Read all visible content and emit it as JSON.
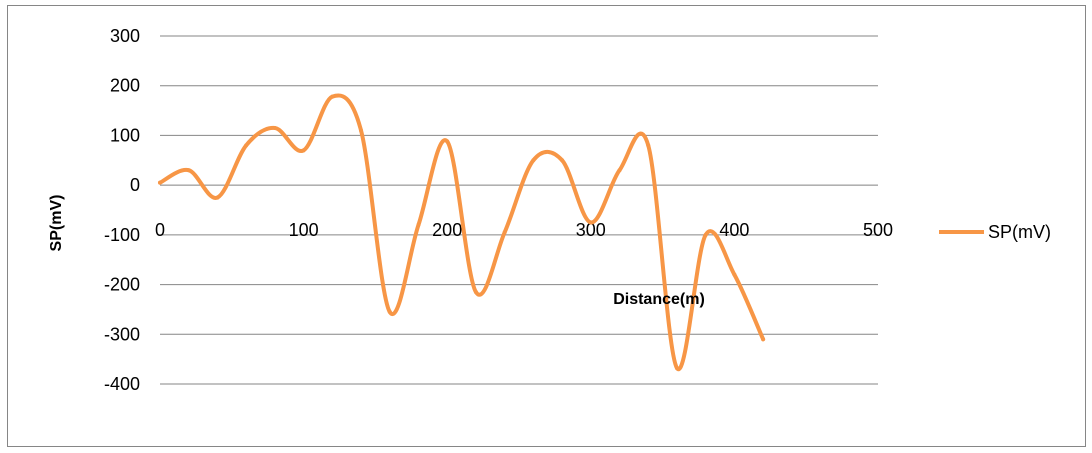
{
  "chart_data": {
    "type": "line",
    "title": "",
    "xlabel": "Distance(m)",
    "ylabel": "SP(mV)",
    "xlim": [
      0,
      500
    ],
    "ylim": [
      -400,
      300
    ],
    "x_ticks": [
      0,
      100,
      200,
      300,
      400,
      500
    ],
    "y_ticks": [
      300,
      200,
      100,
      0,
      -100,
      -200,
      -300,
      -400
    ],
    "grid": "horizontal",
    "legend": "right",
    "series": [
      {
        "name": "SP(mV)",
        "color": "#F79646",
        "x": [
          0,
          20,
          40,
          60,
          80,
          100,
          120,
          140,
          160,
          180,
          200,
          220,
          240,
          260,
          280,
          300,
          320,
          340,
          360,
          380,
          400,
          420
        ],
        "y": [
          5,
          30,
          -25,
          80,
          115,
          70,
          178,
          110,
          -255,
          -80,
          88,
          -215,
          -95,
          50,
          50,
          -75,
          30,
          80,
          -368,
          -100,
          -180,
          -310
        ]
      }
    ]
  }
}
